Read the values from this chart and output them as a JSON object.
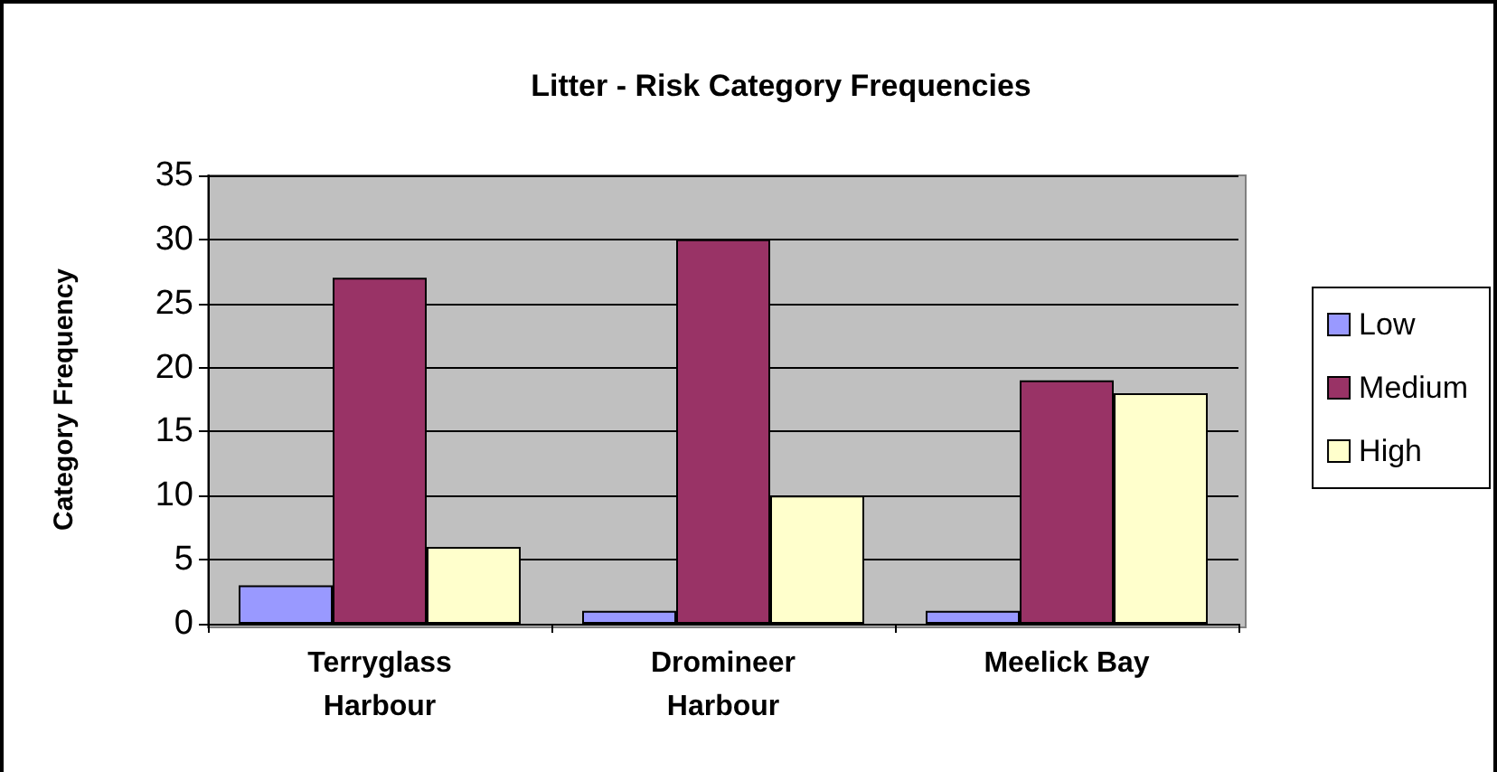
{
  "chart_data": {
    "type": "bar",
    "title": "Litter - Risk Category Frequencies",
    "ylabel": "Category Frequency",
    "categories": [
      "Terryglass\nHarbour",
      "Dromineer\nHarbour",
      "Meelick Bay"
    ],
    "series": [
      {
        "name": "Low",
        "color": "#9999ff",
        "values": [
          3,
          1,
          1
        ]
      },
      {
        "name": "Medium",
        "color": "#993366",
        "values": [
          27,
          30,
          19
        ]
      },
      {
        "name": "High",
        "color": "#ffffcc",
        "values": [
          6,
          10,
          18
        ]
      }
    ],
    "ylim": [
      0,
      35
    ],
    "yticks": [
      0,
      5,
      10,
      15,
      20,
      25,
      30,
      35
    ],
    "grid": "y",
    "legend": "right"
  }
}
